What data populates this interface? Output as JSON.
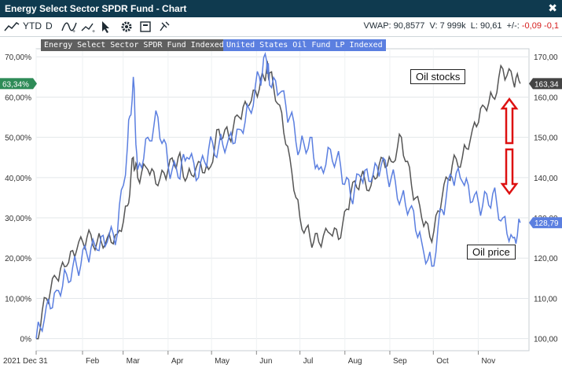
{
  "window": {
    "title": "Energy Select Sector SPDR Fund - Chart"
  },
  "toolbar": {
    "period": "YTD",
    "interval": "D",
    "icons": [
      "line-chart-icon",
      "indicator-icon",
      "draw-trend-icon",
      "cursor-icon",
      "settings-icon",
      "export-icon",
      "pin-icon"
    ],
    "stats": {
      "vwap": "VWAP: 90,8577",
      "volume": "V: 7 999k",
      "low": "L: 90,61",
      "change_label": "+/-:",
      "change_abs": "-0,09",
      "change_pct": "-0,1"
    }
  },
  "legend": {
    "series1": "Energy Select Sector SPDR Fund Indexed",
    "series2": "United States Oil Fund LP Indexed"
  },
  "annotations": {
    "oil_stocks": "Oil stocks",
    "oil_price": "Oil price"
  },
  "colors": {
    "series1": "#555555",
    "series2": "#5b7fe0",
    "arrow": "#dd1111",
    "titlebar": "#0f3a4f"
  },
  "chart_data": {
    "type": "line",
    "x_tick_labels": [
      "2021 Dec 31",
      "Feb",
      "Mar",
      "Apr",
      "May",
      "Jun",
      "Jul",
      "Aug",
      "Sep",
      "Oct",
      "Nov"
    ],
    "left_axis": {
      "ticks": [
        "0%",
        "10,00%",
        "20,00%",
        "30,00%",
        "40,00%",
        "50,00%",
        "60,00%",
        "70,00%"
      ],
      "range": [
        -3,
        72
      ],
      "last_value_label": "63,34%"
    },
    "right_axis": {
      "ticks": [
        "100,00",
        "110,00",
        "120,00",
        "130,00",
        "140,00",
        "150,00",
        "160,00",
        "170,00"
      ],
      "range": [
        97,
        172
      ],
      "last_value_labels": [
        "163,34",
        "128,79"
      ]
    },
    "grid": true,
    "series": [
      {
        "name": "Energy Select Sector SPDR Fund Indexed",
        "axis": "percent",
        "x": [
          "2021-12-31",
          "2022-01-07",
          "2022-01-14",
          "2022-01-21",
          "2022-01-28",
          "2022-02-04",
          "2022-02-11",
          "2022-02-18",
          "2022-02-25",
          "2022-03-04",
          "2022-03-08",
          "2022-03-11",
          "2022-03-18",
          "2022-03-25",
          "2022-04-01",
          "2022-04-08",
          "2022-04-14",
          "2022-04-22",
          "2022-04-29",
          "2022-05-06",
          "2022-05-13",
          "2022-05-20",
          "2022-05-27",
          "2022-06-03",
          "2022-06-08",
          "2022-06-10",
          "2022-06-17",
          "2022-06-24",
          "2022-07-01",
          "2022-07-08",
          "2022-07-14",
          "2022-07-22",
          "2022-07-29",
          "2022-08-05",
          "2022-08-12",
          "2022-08-19",
          "2022-08-26",
          "2022-09-02",
          "2022-09-09",
          "2022-09-16",
          "2022-09-23",
          "2022-09-30",
          "2022-10-07",
          "2022-10-14",
          "2022-10-21",
          "2022-10-28",
          "2022-11-04",
          "2022-11-11",
          "2022-11-18",
          "2022-11-25",
          "2022-11-30"
        ],
        "y": [
          0,
          10,
          15,
          18,
          22,
          25,
          24,
          25,
          26,
          33,
          45,
          40,
          42,
          38,
          42,
          45,
          40,
          44,
          42,
          52,
          50,
          55,
          58,
          62,
          67,
          66,
          58,
          45,
          30,
          25,
          24,
          26,
          25,
          36,
          40,
          38,
          45,
          44,
          50,
          38,
          30,
          24,
          35,
          43,
          45,
          52,
          58,
          60,
          67,
          64,
          63.34
        ]
      },
      {
        "name": "United States Oil Fund LP Indexed",
        "axis": "price",
        "x": [
          "2021-12-31",
          "2022-01-07",
          "2022-01-14",
          "2022-01-21",
          "2022-01-28",
          "2022-02-04",
          "2022-02-11",
          "2022-02-18",
          "2022-02-25",
          "2022-03-04",
          "2022-03-08",
          "2022-03-11",
          "2022-03-18",
          "2022-03-25",
          "2022-04-01",
          "2022-04-08",
          "2022-04-14",
          "2022-04-22",
          "2022-04-29",
          "2022-05-06",
          "2022-05-13",
          "2022-05-20",
          "2022-05-27",
          "2022-06-03",
          "2022-06-08",
          "2022-06-10",
          "2022-06-17",
          "2022-06-24",
          "2022-07-01",
          "2022-07-08",
          "2022-07-14",
          "2022-07-22",
          "2022-07-29",
          "2022-08-05",
          "2022-08-12",
          "2022-08-19",
          "2022-08-26",
          "2022-09-02",
          "2022-09-09",
          "2022-09-16",
          "2022-09-23",
          "2022-09-30",
          "2022-10-07",
          "2022-10-14",
          "2022-10-21",
          "2022-10-28",
          "2022-11-04",
          "2022-11-11",
          "2022-11-18",
          "2022-11-25",
          "2022-11-30"
        ],
        "y": [
          100,
          108,
          112,
          116,
          118,
          121,
          122,
          124,
          126,
          148,
          165,
          142,
          150,
          155,
          143,
          140,
          145,
          140,
          147,
          148,
          150,
          152,
          157,
          165,
          169,
          163,
          161,
          155,
          147,
          150,
          142,
          147,
          143,
          135,
          140,
          139,
          143,
          140,
          135,
          133,
          124,
          118,
          132,
          140,
          139,
          134,
          133,
          136,
          130,
          125,
          128.79
        ]
      }
    ]
  }
}
